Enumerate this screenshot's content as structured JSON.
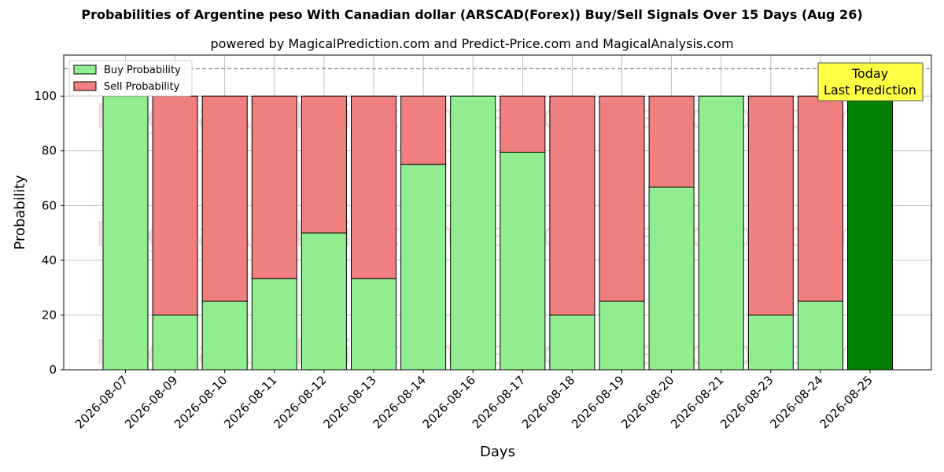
{
  "chart_data": {
    "type": "bar",
    "stacked": true,
    "title": "Probabilities of Argentine peso With Canadian dollar (ARSCAD(Forex)) Buy/Sell Signals Over 15 Days (Aug 26)",
    "subtitle": "powered by MagicalPrediction.com and Predict-Price.com and MagicalAnalysis.com",
    "xlabel": "Days",
    "ylabel": "Probability",
    "ylim": [
      0,
      115
    ],
    "yticks": [
      0,
      20,
      40,
      60,
      80,
      100
    ],
    "reference_line": 110,
    "grid": true,
    "legend_position": "top-left",
    "categories": [
      "2026-08-07",
      "2026-08-09",
      "2026-08-10",
      "2026-08-11",
      "2026-08-12",
      "2026-08-13",
      "2026-08-14",
      "2026-08-16",
      "2026-08-17",
      "2026-08-18",
      "2026-08-19",
      "2026-08-20",
      "2026-08-21",
      "2026-08-23",
      "2026-08-24",
      "2026-08-25"
    ],
    "series": [
      {
        "name": "Buy Probability",
        "color": "#90ee90",
        "values": [
          100,
          20,
          25,
          33.3,
          50,
          33.3,
          75,
          100,
          79.5,
          20,
          25,
          66.7,
          100,
          20,
          25,
          100
        ]
      },
      {
        "name": "Sell Probability",
        "color": "#f08080",
        "values": [
          0,
          80,
          75,
          66.7,
          50,
          66.7,
          25,
          0,
          20.5,
          80,
          75,
          33.3,
          0,
          80,
          75,
          0
        ]
      }
    ],
    "highlight": {
      "index": 15,
      "color": "#008000"
    },
    "annotation": {
      "lines": [
        "Today",
        "Last Prediction"
      ],
      "background": "#ffff44"
    },
    "watermarks": [
      "MagicalAnalysis.com",
      "Magical Prediction.com"
    ]
  }
}
